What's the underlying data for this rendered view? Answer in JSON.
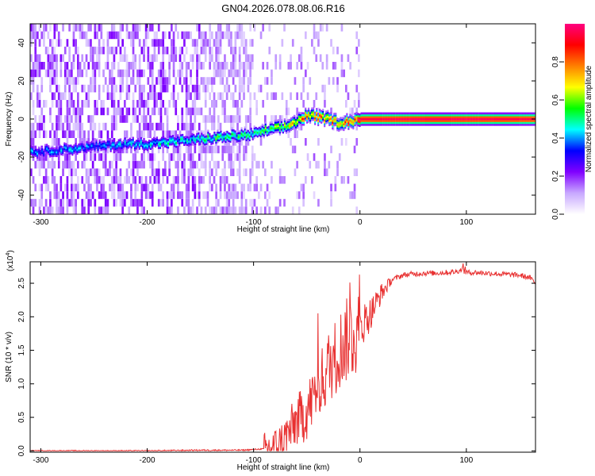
{
  "title": "GN04.2026.078.08.06.R16",
  "chart_data": [
    {
      "type": "heatmap",
      "title": "GN04.2026.078.08.06.R16",
      "xlabel": "Height of straight line (km)",
      "ylabel": "Frequency (Hz)",
      "xlim": [
        -310,
        165
      ],
      "ylim": [
        -50,
        50
      ],
      "xticks": [
        -300,
        -200,
        -100,
        0,
        100
      ],
      "yticks": [
        -40,
        -20,
        0,
        20,
        40
      ],
      "colorbar": {
        "label": "Normalized spectral amplitude",
        "range": [
          0.0,
          1.0
        ],
        "ticks": [
          "0.0",
          "0.2",
          "0.4",
          "0.6",
          "0.8"
        ],
        "colors": [
          "#ffffff",
          "#c8a8ff",
          "#8000ff",
          "#0000ff",
          "#00ffff",
          "#00ff00",
          "#ffff00",
          "#ff8000",
          "#ff0000",
          "#ff0080"
        ]
      },
      "ridge": [
        {
          "x": -300,
          "f": -17,
          "a": 0.4
        },
        {
          "x": -280,
          "f": -16,
          "a": 0.45
        },
        {
          "x": -260,
          "f": -15,
          "a": 0.4
        },
        {
          "x": -240,
          "f": -14,
          "a": 0.42
        },
        {
          "x": -220,
          "f": -13,
          "a": 0.45
        },
        {
          "x": -200,
          "f": -13,
          "a": 0.5
        },
        {
          "x": -180,
          "f": -12,
          "a": 0.5
        },
        {
          "x": -160,
          "f": -11,
          "a": 0.45
        },
        {
          "x": -140,
          "f": -10,
          "a": 0.55
        },
        {
          "x": -120,
          "f": -9,
          "a": 0.55
        },
        {
          "x": -100,
          "f": -8,
          "a": 0.55
        },
        {
          "x": -90,
          "f": -6,
          "a": 0.6
        },
        {
          "x": -80,
          "f": -5,
          "a": 0.6
        },
        {
          "x": -70,
          "f": -4,
          "a": 0.7
        },
        {
          "x": -60,
          "f": -1,
          "a": 0.75
        },
        {
          "x": -50,
          "f": 2,
          "a": 0.85
        },
        {
          "x": -40,
          "f": 1,
          "a": 0.85
        },
        {
          "x": -30,
          "f": 0,
          "a": 0.85
        },
        {
          "x": -20,
          "f": -2,
          "a": 0.8
        },
        {
          "x": -10,
          "f": -1,
          "a": 0.9
        },
        {
          "x": 0,
          "f": 0,
          "a": 0.95
        },
        {
          "x": 50,
          "f": 0,
          "a": 0.97
        },
        {
          "x": 100,
          "f": 0,
          "a": 0.97
        },
        {
          "x": 165,
          "f": 0,
          "a": 0.95
        }
      ]
    },
    {
      "type": "line",
      "xlabel": "Height of straight line (km)",
      "ylabel": "SNR (10 * v/v)",
      "y_multiplier": "(x10",
      "y_multiplier_exp": "4",
      "y_multiplier_close": ")",
      "xlim": [
        -310,
        165
      ],
      "ylim": [
        -0.02,
        2.82
      ],
      "xticks": [
        -300,
        -200,
        -100,
        0,
        100
      ],
      "yticks": [
        "0.0",
        "0.5",
        "1.0",
        "1.5",
        "2.0",
        "2.5"
      ],
      "line_color": "#e83030",
      "series": [
        {
          "name": "SNR",
          "x": [
            -310,
            -250,
            -200,
            -150,
            -110,
            -100,
            -90,
            -80,
            -75,
            -70,
            -65,
            -60,
            -55,
            -50,
            -45,
            -40,
            -35,
            -30,
            -25,
            -20,
            -15,
            -10,
            -5,
            0,
            5,
            10,
            15,
            20,
            25,
            30,
            40,
            50,
            60,
            70,
            80,
            90,
            95,
            100,
            110,
            120,
            130,
            140,
            150,
            160,
            165
          ],
          "y": [
            0.0,
            0.0,
            0.0,
            0.01,
            0.01,
            0.02,
            0.03,
            0.05,
            0.1,
            0.2,
            0.3,
            0.45,
            0.5,
            0.6,
            0.75,
            0.95,
            1.05,
            1.25,
            1.35,
            1.5,
            1.6,
            1.7,
            1.75,
            1.85,
            1.95,
            2.05,
            2.2,
            2.35,
            2.45,
            2.55,
            2.62,
            2.64,
            2.65,
            2.65,
            2.66,
            2.67,
            2.7,
            2.66,
            2.66,
            2.65,
            2.64,
            2.63,
            2.62,
            2.58,
            2.5
          ]
        }
      ]
    }
  ]
}
